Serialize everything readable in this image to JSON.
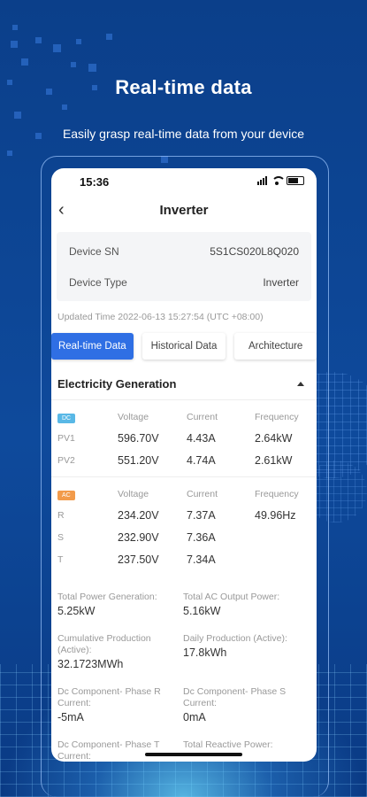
{
  "promo": {
    "headline": "Real-time data",
    "subline": "Easily grasp real-time data from your device"
  },
  "status_bar": {
    "time": "15:36"
  },
  "nav": {
    "back_icon": "chevron-left-icon",
    "title": "Inverter"
  },
  "device": {
    "sn_label": "Device SN",
    "sn_value": "5S1CS020L8Q020",
    "type_label": "Device Type",
    "type_value": "Inverter"
  },
  "updated_time": "Updated Time 2022-06-13 15:27:54 (UTC +08:00)",
  "tabs": [
    {
      "label": "Real-time Data",
      "active": true
    },
    {
      "label": "Historical Data",
      "active": false
    },
    {
      "label": "Architecture",
      "active": false
    }
  ],
  "section": {
    "title": "Electricity Generation"
  },
  "dc_table": {
    "badge": "DC",
    "headers": [
      "Voltage",
      "Current",
      "Frequency"
    ],
    "rows": [
      {
        "label": "PV1",
        "voltage": "596.70V",
        "current": "4.43A",
        "frequency": "2.64kW"
      },
      {
        "label": "PV2",
        "voltage": "551.20V",
        "current": "4.74A",
        "frequency": "2.61kW"
      }
    ]
  },
  "ac_table": {
    "badge": "AC",
    "headers": [
      "Voltage",
      "Current",
      "Frequency"
    ],
    "rows": [
      {
        "label": "R",
        "voltage": "234.20V",
        "current": "7.37A",
        "frequency": "49.96Hz"
      },
      {
        "label": "S",
        "voltage": "232.90V",
        "current": "7.36A",
        "frequency": ""
      },
      {
        "label": "T",
        "voltage": "237.50V",
        "current": "7.34A",
        "frequency": ""
      }
    ]
  },
  "stats": [
    {
      "label": "Total Power Generation:",
      "value": "5.25kW"
    },
    {
      "label": "Total AC Output Power:",
      "value": "5.16kW"
    },
    {
      "label": "Cumulative Production (Active):",
      "value": "32.1723MWh"
    },
    {
      "label": "Daily Production (Active):",
      "value": "17.8kWh"
    },
    {
      "label": "Dc Component- Phase R Current:",
      "value": "-5mA"
    },
    {
      "label": "Dc Component- Phase S Current:",
      "value": "0mA"
    },
    {
      "label": "Dc Component- Phase T Current:",
      "value": ""
    },
    {
      "label": "Total Reactive Power:",
      "value": ""
    }
  ],
  "colors": {
    "accent": "#2f6fe4",
    "background": "#0e4a9c",
    "dc_badge": "#59b8e6",
    "ac_badge": "#f29b4b"
  }
}
